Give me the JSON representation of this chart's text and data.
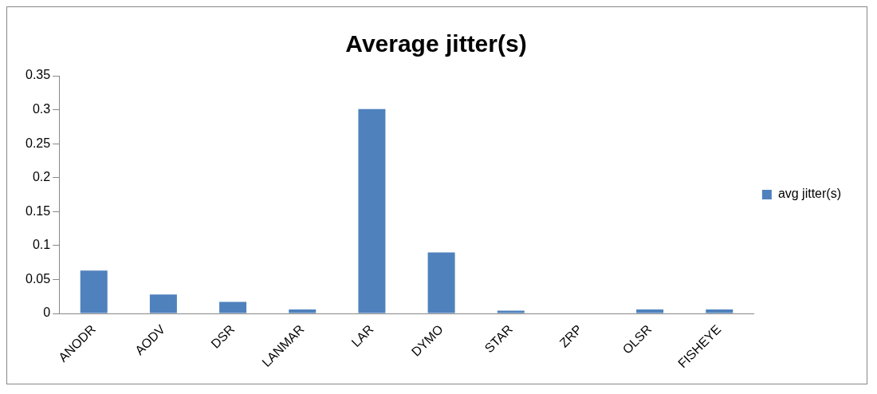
{
  "chart_data": {
    "type": "bar",
    "title": "Average jitter(s)",
    "categories": [
      "ANODR",
      "AODV",
      "DSR",
      "LANMAR",
      "LAR",
      "DYMO",
      "STAR",
      "ZRP",
      "OLSR",
      "FISHEYE"
    ],
    "series": [
      {
        "name": "avg jitter(s)",
        "color": "#4f81bd",
        "values": [
          0.063,
          0.028,
          0.017,
          0.006,
          0.301,
          0.09,
          0.004,
          0,
          0.006,
          0.006
        ]
      }
    ],
    "ylim": [
      0,
      0.35
    ],
    "yticks": [
      0,
      0.05,
      0.1,
      0.15,
      0.2,
      0.25,
      0.3,
      0.35
    ],
    "grid": false,
    "legend": "right"
  }
}
